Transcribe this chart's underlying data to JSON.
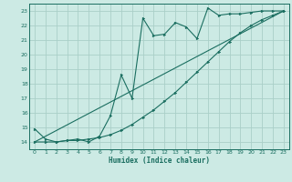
{
  "title": "",
  "xlabel": "Humidex (Indice chaleur)",
  "ylabel": "",
  "bg_color": "#cceae4",
  "grid_color": "#aacfc8",
  "line_color": "#1a6e60",
  "xlim": [
    -0.5,
    23.5
  ],
  "ylim": [
    13.5,
    23.5
  ],
  "xticks": [
    0,
    1,
    2,
    3,
    4,
    5,
    6,
    7,
    8,
    9,
    10,
    11,
    12,
    13,
    14,
    15,
    16,
    17,
    18,
    19,
    20,
    21,
    22,
    23
  ],
  "yticks": [
    14,
    15,
    16,
    17,
    18,
    19,
    20,
    21,
    22,
    23
  ],
  "line1_x": [
    0,
    1,
    2,
    3,
    4,
    5,
    6,
    7,
    8,
    9,
    10,
    11,
    12,
    13,
    14,
    15,
    16,
    17,
    18,
    19,
    20,
    21,
    22,
    23
  ],
  "line1_y": [
    14.9,
    14.2,
    14.0,
    14.1,
    14.2,
    14.0,
    14.4,
    15.8,
    18.6,
    17.0,
    22.5,
    21.3,
    21.4,
    22.2,
    21.9,
    21.1,
    23.2,
    22.7,
    22.8,
    22.8,
    22.9,
    23.0,
    23.0,
    23.0
  ],
  "line2_x": [
    0,
    1,
    2,
    3,
    4,
    5,
    6,
    7,
    8,
    9,
    10,
    11,
    12,
    13,
    14,
    15,
    16,
    17,
    18,
    19,
    20,
    21,
    22,
    23
  ],
  "line2_y": [
    14.0,
    14.0,
    14.0,
    14.1,
    14.1,
    14.2,
    14.3,
    14.5,
    14.8,
    15.2,
    15.7,
    16.2,
    16.8,
    17.4,
    18.1,
    18.8,
    19.5,
    20.2,
    20.9,
    21.5,
    22.0,
    22.4,
    22.7,
    23.0
  ],
  "line3_x": [
    0,
    23
  ],
  "line3_y": [
    14.0,
    23.0
  ]
}
